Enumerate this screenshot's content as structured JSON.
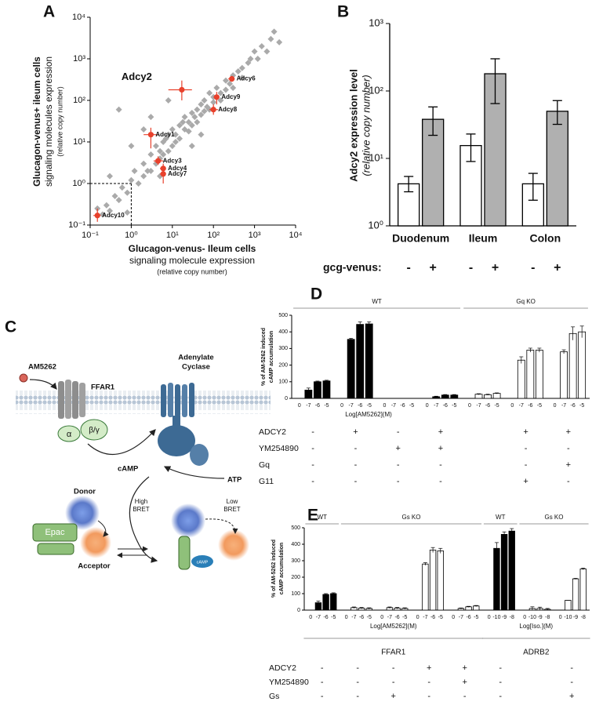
{
  "chart_data": [
    {
      "type": "scatter",
      "panel_label": "A",
      "x_label": [
        "Glucagon-venus- Ileum cells",
        "signaling molecule expression",
        "(relative copy number)"
      ],
      "y_label": [
        "Glucagon-venus+ ileum cells",
        "signaling molecules expression",
        "(relative copy number)"
      ],
      "log_scale": true,
      "xlim": [
        0.1,
        10000
      ],
      "ylim": [
        0.1,
        10000
      ],
      "xticks": [
        {
          "value": 0.1,
          "label": "10⁻¹"
        },
        {
          "value": 1,
          "label": "10⁰"
        },
        {
          "value": 10,
          "label": "10¹"
        },
        {
          "value": 100,
          "label": "10²"
        },
        {
          "value": 1000,
          "label": "10³"
        },
        {
          "value": 10000,
          "label": "10⁴"
        }
      ],
      "yticks": [
        {
          "value": 0.1,
          "label": "10⁻¹"
        },
        {
          "value": 1,
          "label": "10⁰"
        },
        {
          "value": 10,
          "label": "10¹"
        },
        {
          "value": 100,
          "label": "10²"
        },
        {
          "value": 1000,
          "label": "10³"
        },
        {
          "value": 10000,
          "label": "10⁴"
        }
      ],
      "reference": {
        "x": 1,
        "y": 1
      },
      "color": "#aaaaaa",
      "x": [
        0.15,
        0.2,
        0.25,
        0.3,
        0.4,
        0.5,
        0.3,
        0.6,
        0.8,
        1,
        1.2,
        1.5,
        2,
        2,
        2.5,
        3,
        3,
        4,
        4,
        5,
        5,
        6,
        6,
        7,
        8,
        8,
        10,
        10,
        12,
        12,
        15,
        15,
        18,
        20,
        20,
        25,
        25,
        30,
        30,
        35,
        40,
        40,
        50,
        50,
        60,
        60,
        70,
        80,
        80,
        100,
        100,
        120,
        150,
        150,
        200,
        200,
        250,
        300,
        300,
        400,
        500,
        500,
        700,
        800,
        1000,
        1200,
        1500,
        2000,
        2500,
        3000,
        4000,
        0.5,
        1,
        2,
        0.8,
        5,
        30,
        50,
        3,
        8
      ],
      "y": [
        0.25,
        0.18,
        0.3,
        0.22,
        0.5,
        0.4,
        1.5,
        0.8,
        0.6,
        1.2,
        2,
        1,
        3,
        1.5,
        2,
        5,
        2,
        8,
        3,
        6,
        4,
        10,
        5,
        12,
        6,
        15,
        8,
        20,
        15,
        10,
        25,
        12,
        30,
        20,
        40,
        30,
        18,
        50,
        25,
        40,
        60,
        30,
        80,
        45,
        100,
        55,
        70,
        150,
        60,
        120,
        90,
        200,
        150,
        100,
        300,
        180,
        250,
        400,
        200,
        500,
        600,
        350,
        800,
        1000,
        1500,
        1000,
        2000,
        1500,
        3000,
        4500,
        2500,
        60,
        8,
        20,
        0.2,
        1.5,
        8,
        15,
        40,
        100
      ],
      "highlighted": {
        "color": "#e8412c",
        "names": [
          "Adcy10",
          "Adcy1",
          "Adcy3",
          "Adcy4",
          "Adcy7",
          "Adcy2",
          "Adcy9",
          "Adcy8",
          "Adcy6"
        ],
        "x": [
          0.15,
          3,
          4.5,
          6,
          6,
          17,
          120,
          100,
          280
        ],
        "y": [
          0.17,
          15,
          3.5,
          2.3,
          1.7,
          180,
          120,
          60,
          330
        ],
        "x_low": [
          0.12,
          2,
          3.5,
          5,
          5,
          8,
          100,
          80,
          230
        ],
        "x_high": [
          0.18,
          4.5,
          6,
          7,
          7,
          30,
          140,
          130,
          330
        ],
        "y_low": [
          0.12,
          7,
          2.8,
          1.6,
          1,
          100,
          80,
          45,
          280
        ],
        "y_high": [
          0.25,
          22,
          4.5,
          3,
          2.5,
          300,
          160,
          80,
          380
        ]
      }
    },
    {
      "type": "bar",
      "panel_label": "B",
      "log_scale": true,
      "y_label": [
        "Adcy2 expression level",
        "(relative copy number)"
      ],
      "categories": [
        "Duodenum",
        "Ileum",
        "Colon"
      ],
      "ylim": [
        1,
        1000
      ],
      "yticks": [
        {
          "value": 1,
          "label": "10⁰"
        },
        {
          "value": 10,
          "label": "10¹"
        },
        {
          "value": 100,
          "label": "10²"
        },
        {
          "value": 1000,
          "label": "10³"
        }
      ],
      "legend_title": "gcg-venus:",
      "series": [
        {
          "name": "-",
          "color": "#ffffff",
          "values": [
            4.2,
            15.5,
            4.2
          ],
          "err_low": [
            3.2,
            9,
            2.4
          ],
          "err_high": [
            5.4,
            23,
            6
          ]
        },
        {
          "name": "+",
          "color": "#b0b0b0",
          "values": [
            38,
            180,
            50
          ],
          "err_low": [
            22,
            65,
            32
          ],
          "err_high": [
            58,
            300,
            72
          ]
        }
      ]
    },
    {
      "type": "dose_bar",
      "panel_label": "D",
      "y_label": [
        "% of AM-5262 induced",
        "cAMP accumulation"
      ],
      "ylim": [
        0,
        500
      ],
      "yticks": [
        0,
        100,
        200,
        300,
        400,
        500
      ],
      "receptors": [
        {
          "x_label": "Log[AM5262](M)",
          "doses": [
            "0",
            "-7",
            "-6",
            "-5"
          ],
          "genotypes": [
            {
              "name": "WT",
              "color": "#000000",
              "groups": [
                {
                  "values": [
                    0,
                    50,
                    100,
                    105
                  ],
                  "errors": [
                    0,
                    12,
                    4,
                    4
                  ]
                },
                {
                  "values": [
                    0,
                    355,
                    445,
                    448
                  ],
                  "errors": [
                    0,
                    6,
                    15,
                    12
                  ]
                },
                {
                  "values": [
                    0,
                    0,
                    0,
                    0
                  ],
                  "errors": [
                    0,
                    0,
                    0,
                    0
                  ]
                },
                {
                  "values": [
                    0,
                    10,
                    20,
                    20
                  ],
                  "errors": [
                    0,
                    3,
                    3,
                    3
                  ]
                }
              ]
            },
            {
              "name": "Gq KO",
              "color": "#ffffff",
              "groups": [
                {
                  "values": [
                    0,
                    25,
                    22,
                    30
                  ],
                  "errors": [
                    0,
                    3,
                    3,
                    3
                  ]
                },
                {
                  "values": [
                    0,
                    230,
                    290,
                    290
                  ],
                  "errors": [
                    0,
                    20,
                    12,
                    12
                  ]
                },
                {
                  "values": [
                    0,
                    280,
                    390,
                    400
                  ],
                  "errors": [
                    0,
                    12,
                    40,
                    35
                  ]
                }
              ]
            }
          ]
        }
      ],
      "conditions": [
        {
          "name": "ADCY2",
          "marks": [
            "-",
            "+",
            "-",
            "+",
            null,
            "+",
            "+"
          ]
        },
        {
          "name": "YM254890",
          "marks": [
            "-",
            "-",
            "+",
            "+",
            null,
            "-",
            "-"
          ]
        },
        {
          "name": "Gq",
          "marks": [
            "-",
            "-",
            "-",
            "-",
            null,
            "-",
            "+"
          ]
        },
        {
          "name": "G11",
          "marks": [
            "-",
            "-",
            "-",
            "-",
            null,
            "+",
            "-"
          ]
        }
      ]
    },
    {
      "type": "dose_bar",
      "panel_label": "E",
      "y_label": [
        "% of AM-5262 induced",
        "cAMP accumulation"
      ],
      "ylim": [
        0,
        500
      ],
      "yticks": [
        0,
        100,
        200,
        300,
        400,
        500
      ],
      "receptors": [
        {
          "name": "FFAR1",
          "x_label": "Log[AM5262](M)",
          "doses": [
            "0",
            "-7",
            "-6",
            "-5"
          ],
          "genotypes": [
            {
              "name": "WT",
              "color": "#000000",
              "groups": [
                {
                  "values": [
                    0,
                    45,
                    95,
                    100
                  ],
                  "errors": [
                    0,
                    10,
                    5,
                    5
                  ]
                }
              ]
            },
            {
              "name": "Gs KO",
              "color": "#ffffff",
              "groups": [
                {
                  "values": [
                    0,
                    15,
                    12,
                    10
                  ],
                  "errors": [
                    0,
                    4,
                    4,
                    4
                  ]
                },
                {
                  "values": [
                    0,
                    15,
                    12,
                    10
                  ],
                  "errors": [
                    0,
                    4,
                    4,
                    4
                  ]
                },
                {
                  "values": [
                    0,
                    280,
                    365,
                    360
                  ],
                  "errors": [
                    0,
                    8,
                    15,
                    15
                  ]
                },
                {
                  "values": [
                    0,
                    10,
                    20,
                    25
                  ],
                  "errors": [
                    0,
                    3,
                    3,
                    3
                  ]
                }
              ]
            }
          ]
        },
        {
          "name": "ADRB2",
          "x_label": "Log[Iso.](M)",
          "doses": [
            "0",
            "-10",
            "-9",
            "-8"
          ],
          "genotypes": [
            {
              "name": "WT",
              "color": "#000000",
              "groups": [
                {
                  "values": [
                    0,
                    375,
                    460,
                    480
                  ],
                  "errors": [
                    0,
                    35,
                    15,
                    15
                  ]
                }
              ]
            },
            {
              "name": "Gs KO",
              "color": "#ffffff",
              "groups": [
                {
                  "values": [
                    0,
                    10,
                    10,
                    5
                  ],
                  "errors": [
                    0,
                    10,
                    8,
                    5
                  ]
                },
                {
                  "values": [
                    0,
                    60,
                    190,
                    250
                  ],
                  "errors": [
                    0,
                    0,
                    3,
                    5
                  ]
                }
              ]
            }
          ]
        }
      ],
      "conditions": [
        {
          "name": "ADCY2",
          "marks": [
            "-",
            "-",
            "-",
            "+",
            "+",
            "-",
            null,
            "-"
          ]
        },
        {
          "name": "YM254890",
          "marks": [
            "-",
            "-",
            "-",
            "-",
            "+",
            "-",
            null,
            "-"
          ]
        },
        {
          "name": "Gs",
          "marks": [
            "-",
            "-",
            "+",
            "-",
            "-",
            "-",
            null,
            "+"
          ]
        }
      ]
    }
  ],
  "diagram": {
    "panel_label": "C",
    "ligand": "AM5262",
    "receptor": "FFAR1",
    "g_alpha": "α",
    "g_beta_gamma": "β/γ",
    "cyclase": [
      "Adenylate",
      "Cyclase"
    ],
    "camp": "cAMP",
    "atp": "ATP",
    "donor": "Donor",
    "high_bret": [
      "High",
      "BRET"
    ],
    "low_bret": [
      "Low",
      "BRET"
    ],
    "epac": "Epac",
    "acceptor": "Acceptor",
    "camp_bound": "cAMP"
  }
}
